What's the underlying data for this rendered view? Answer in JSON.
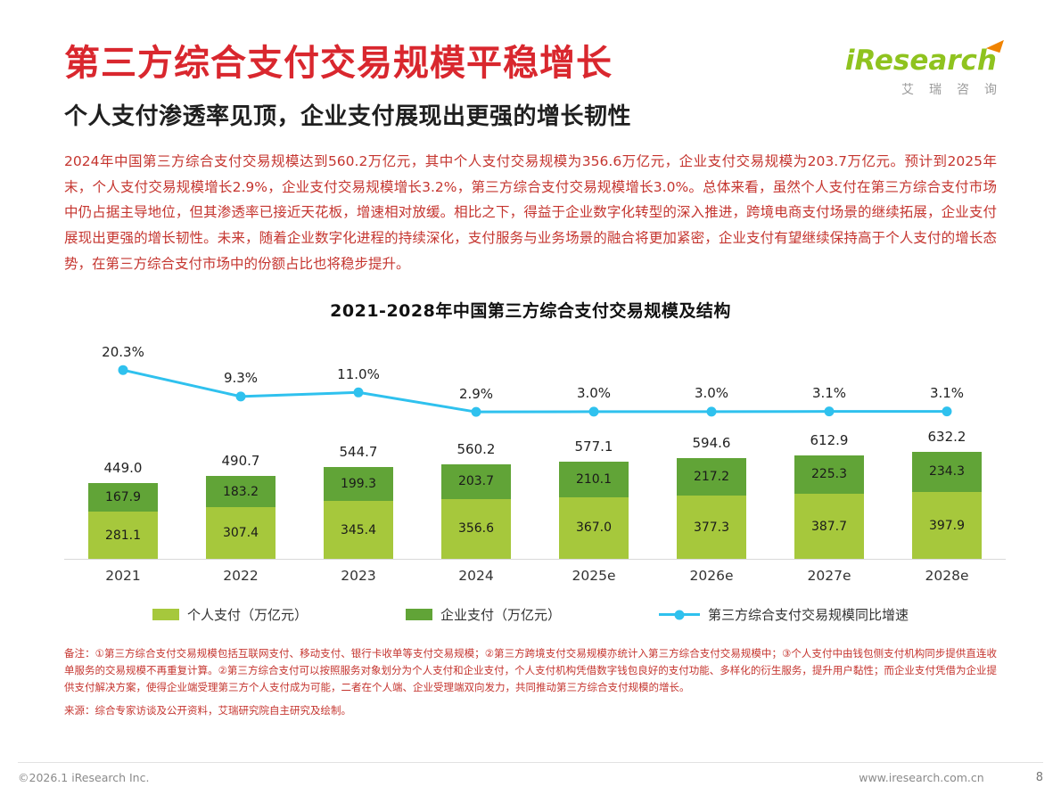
{
  "page": {
    "title": "第三方综合支付交易规模平稳增长",
    "subtitle": "个人支付渗透率见顶，企业支付展现出更强的增长韧性",
    "body": "2024年中国第三方综合支付交易规模达到560.2万亿元，其中个人支付交易规模为356.6万亿元，企业支付交易规模为203.7万亿元。预计到2025年末，个人支付交易规模增长2.9%，企业支付交易规模增长3.2%，第三方综合支付交易规模增长3.0%。总体来看，虽然个人支付在第三方综合支付市场中仍占据主导地位，但其渗透率已接近天花板，增速相对放缓。相比之下，得益于企业数字化转型的深入推进，跨境电商支付场景的继续拓展，企业支付展现出更强的增长韧性。未来，随着企业数字化进程的持续深化，支付服务与业务场景的融合将更加紧密，企业支付有望继续保持高于个人支付的增长态势，在第三方综合支付市场中的份额占比也将稳步提升。"
  },
  "logo": {
    "brand": "iResearch",
    "cn": "艾瑞咨询"
  },
  "chart_data": {
    "type": "bar",
    "subtype": "stacked-bar-with-line",
    "title": "2021-2028年中国第三方综合支付交易规模及结构",
    "categories": [
      "2021",
      "2022",
      "2023",
      "2024",
      "2025e",
      "2026e",
      "2027e",
      "2028e"
    ],
    "series": [
      {
        "name": "个人支付（万亿元）",
        "values": [
          281.1,
          307.4,
          345.4,
          356.6,
          367.0,
          377.3,
          387.7,
          397.9
        ],
        "color": "#a6c83c"
      },
      {
        "name": "企业支付（万亿元）",
        "values": [
          167.9,
          183.2,
          199.3,
          203.7,
          210.1,
          217.2,
          225.3,
          234.3
        ],
        "color": "#61a437"
      }
    ],
    "totals": [
      "449.0",
      "490.7",
      "544.7",
      "560.2",
      "577.1",
      "594.6",
      "612.9",
      "632.2"
    ],
    "line": {
      "name": "第三方综合支付交易规模同比增速",
      "values": [
        20.3,
        9.3,
        11.0,
        2.9,
        3.0,
        3.0,
        3.1,
        3.1
      ],
      "labels": [
        "20.3%",
        "9.3%",
        "11.0%",
        "2.9%",
        "3.0%",
        "3.0%",
        "3.1%",
        "3.1%"
      ],
      "color": "#2fc1ee"
    },
    "legend_position": "bottom",
    "grid": false
  },
  "notes": {
    "text": "备注：①第三方综合支付交易规模包括互联网支付、移动支付、银行卡收单等支付交易规模；②第三方跨境支付交易规模亦统计入第三方综合支付交易规模中；③个人支付中由钱包侧支付机构同步提供直连收单服务的交易规模不再重复计算。②第三方综合支付可以按照服务对象划分为个人支付和企业支付，个人支付机构凭借数字钱包良好的支付功能、多样化的衍生服务，提升用户黏性；而企业支付凭借为企业提供支付解决方案，使得企业端受理第三方个人支付成为可能，二者在个人端、企业受理端双向发力，共同推动第三方综合支付规模的增长。",
    "source": "来源：综合专家访谈及公开资料，艾瑞研究院自主研究及绘制。"
  },
  "footer": {
    "copyright": "©2026.1 iResearch Inc.",
    "url": "www.iresearch.com.cn",
    "page_number": "8"
  }
}
